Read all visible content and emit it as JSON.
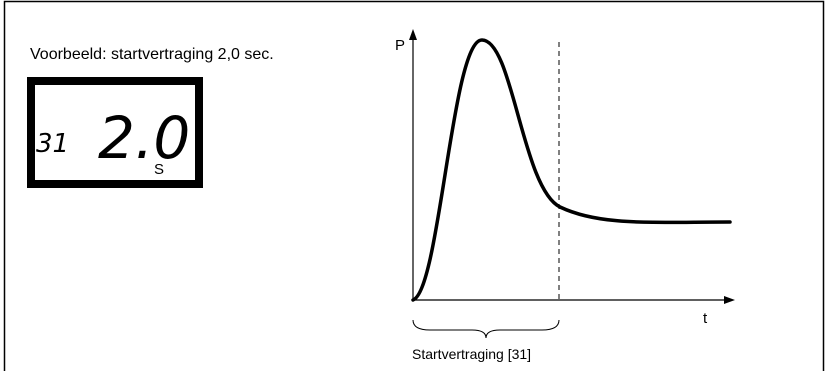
{
  "header": {
    "title": "Voorbeeld: startvertraging 2,0 sec."
  },
  "display": {
    "parameter": "31",
    "value": "2.0",
    "unit": "S"
  },
  "graph": {
    "y_axis_label": "P",
    "x_axis_label": "t",
    "brace_label": "Startvertraging [31]"
  }
}
